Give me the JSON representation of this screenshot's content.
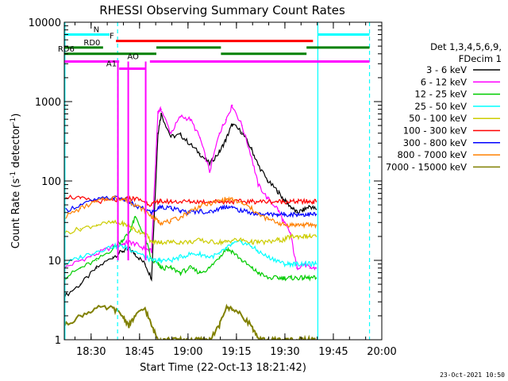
{
  "chart_data": {
    "type": "line",
    "title": "RHESSI Observing Summary Count Rates",
    "xlabel": "Start Time (22-Oct-13 18:21:42)",
    "ylabel_main": "Count Rate (s",
    "ylabel_sup1": "-1",
    "ylabel_mid": " detector",
    "ylabel_sup2": "-1",
    "ylabel_end": ")",
    "x_range_minutes": [
      0,
      98.3
    ],
    "y_range": [
      1,
      10000
    ],
    "y_scale": "log",
    "x_ticks": [
      {
        "label": "18:30",
        "minute": 8.3
      },
      {
        "label": "18:45",
        "minute": 23.3
      },
      {
        "label": "19:00",
        "minute": 38.3
      },
      {
        "label": "19:15",
        "minute": 53.3
      },
      {
        "label": "19:30",
        "minute": 68.3
      },
      {
        "label": "19:45",
        "minute": 83.3
      },
      {
        "label": "20:00",
        "minute": 98.3
      }
    ],
    "y_ticks": [
      {
        "label": "1",
        "value": 1
      },
      {
        "label": "10",
        "value": 10
      },
      {
        "label": "100",
        "value": 100
      },
      {
        "label": "1000",
        "value": 1000
      },
      {
        "label": "10000",
        "value": 10000
      }
    ],
    "legend_header": [
      "Det 1,3,4,5,6,9,",
      "FDecim 1"
    ],
    "legend_placement": "right",
    "series": [
      {
        "name": "3 - 6 keV",
        "color": "#000000",
        "x": [
          0,
          5,
          10,
          15,
          18,
          20,
          22,
          25,
          27,
          29,
          30,
          33,
          36,
          39,
          42,
          45,
          48,
          50,
          52,
          55,
          58,
          60,
          63,
          66,
          68,
          70,
          72,
          74,
          76,
          78
        ],
        "y": [
          3.5,
          5,
          8,
          11,
          13,
          14,
          12,
          9,
          6,
          400,
          700,
          360,
          380,
          290,
          220,
          165,
          230,
          330,
          520,
          410,
          250,
          160,
          100,
          75,
          58,
          48,
          40,
          43,
          48,
          44
        ]
      },
      {
        "name": "6 - 12 keV",
        "color": "#ff00ff",
        "x": [
          0,
          5,
          10,
          15,
          18,
          20,
          22,
          25,
          27,
          29,
          30,
          33,
          36,
          39,
          42,
          45,
          48,
          50,
          52,
          55,
          58,
          60,
          63,
          66,
          68,
          70,
          72,
          74,
          76,
          78
        ],
        "y": [
          8,
          10,
          12,
          15,
          16,
          17,
          16,
          14,
          13,
          750,
          800,
          400,
          650,
          600,
          350,
          130,
          400,
          590,
          900,
          500,
          200,
          90,
          60,
          45,
          30,
          22,
          8,
          9,
          8,
          8
        ]
      },
      {
        "name": "12 - 25 keV",
        "color": "#00cc00",
        "x": [
          0,
          5,
          10,
          15,
          18,
          20,
          22,
          25,
          27,
          29,
          30,
          33,
          36,
          39,
          42,
          45,
          48,
          50,
          52,
          55,
          58,
          60,
          63,
          66,
          68,
          70,
          72,
          74,
          76,
          78
        ],
        "y": [
          6,
          8,
          10,
          14,
          18,
          22,
          35,
          20,
          10,
          9,
          8,
          8,
          7,
          8,
          7,
          8,
          11,
          14,
          13,
          10,
          8,
          7,
          6,
          6,
          6,
          6,
          6,
          6,
          6,
          6
        ]
      },
      {
        "name": "25 - 50 keV",
        "color": "#00ffff",
        "x": [
          0,
          5,
          10,
          15,
          18,
          20,
          22,
          25,
          27,
          29,
          30,
          33,
          36,
          39,
          42,
          45,
          48,
          50,
          52,
          55,
          58,
          60,
          63,
          66,
          68,
          70,
          72,
          74,
          76,
          78
        ],
        "y": [
          9,
          11,
          13,
          15,
          15,
          14,
          13,
          11,
          10,
          10,
          10,
          10,
          11,
          12,
          12,
          11,
          12,
          14,
          16,
          17,
          15,
          13,
          11,
          10,
          9,
          9,
          9,
          9,
          9,
          9
        ]
      },
      {
        "name": "50 - 100 keV",
        "color": "#cccc00",
        "x": [
          0,
          5,
          10,
          15,
          18,
          20,
          22,
          25,
          27,
          29,
          30,
          33,
          36,
          39,
          42,
          45,
          48,
          50,
          52,
          55,
          58,
          60,
          63,
          66,
          68,
          70,
          72,
          74,
          76,
          78
        ],
        "y": [
          22,
          25,
          28,
          30,
          29,
          27,
          24,
          22,
          17,
          17,
          17,
          17,
          17,
          17,
          18,
          17,
          17,
          17,
          18,
          18,
          17,
          17,
          17,
          18,
          18,
          20,
          20,
          20,
          20,
          20
        ]
      },
      {
        "name": "100 - 300 keV",
        "color": "#ff0000",
        "x": [
          0,
          5,
          10,
          15,
          18,
          20,
          22,
          25,
          27,
          29,
          30,
          33,
          36,
          39,
          42,
          45,
          48,
          50,
          52,
          55,
          58,
          60,
          63,
          66,
          68,
          70,
          72,
          74,
          76,
          78
        ],
        "y": [
          65,
          60,
          55,
          57,
          58,
          60,
          60,
          55,
          50,
          55,
          55,
          55,
          55,
          55,
          55,
          55,
          55,
          55,
          55,
          55,
          55,
          55,
          55,
          55,
          55,
          55,
          55,
          55,
          55,
          55
        ]
      },
      {
        "name": "300 - 800 keV",
        "color": "#0000ff",
        "x": [
          0,
          5,
          10,
          15,
          18,
          20,
          22,
          25,
          27,
          29,
          30,
          33,
          36,
          39,
          42,
          45,
          48,
          50,
          52,
          55,
          58,
          60,
          63,
          66,
          68,
          70,
          72,
          74,
          76,
          78
        ],
        "y": [
          42,
          50,
          58,
          62,
          60,
          55,
          48,
          44,
          40,
          45,
          48,
          45,
          42,
          40,
          42,
          40,
          45,
          48,
          46,
          42,
          40,
          38,
          38,
          38,
          38,
          38,
          38,
          38,
          38,
          38
        ]
      },
      {
        "name": "800 - 7000 keV",
        "color": "#ff8000",
        "x": [
          0,
          5,
          10,
          15,
          18,
          20,
          22,
          25,
          27,
          29,
          30,
          33,
          36,
          39,
          42,
          45,
          48,
          50,
          52,
          55,
          58,
          60,
          63,
          66,
          68,
          70,
          72,
          74,
          76,
          78
        ],
        "y": [
          35,
          45,
          55,
          62,
          60,
          56,
          50,
          42,
          36,
          31,
          30,
          31,
          35,
          42,
          48,
          52,
          56,
          59,
          58,
          52,
          45,
          38,
          33,
          30,
          28,
          28,
          28,
          28,
          28,
          28
        ]
      },
      {
        "name": "7000 - 15000 keV",
        "color": "#808000",
        "x": [
          0,
          5,
          10,
          15,
          18,
          20,
          22,
          25,
          27,
          29,
          30,
          33,
          36,
          39,
          42,
          45,
          48,
          50,
          52,
          55,
          58,
          60,
          63,
          66,
          68,
          70,
          72,
          74,
          76,
          78
        ],
        "y": [
          1.5,
          2,
          2.5,
          2.5,
          2,
          1.5,
          2,
          2.5,
          1.5,
          1,
          1,
          1,
          1,
          1,
          1,
          1,
          1.5,
          2.5,
          2.5,
          2,
          1.5,
          1,
          1,
          1,
          1,
          1,
          1,
          1,
          1,
          1
        ]
      }
    ],
    "annotations": [
      {
        "text": "N",
        "color": "#00ffff",
        "y": 7000,
        "x_start": 0,
        "x_end": 14,
        "label_x": 9
      },
      {
        "text": "",
        "color": "#00ffff",
        "y": 7000,
        "x_start": 78.5,
        "x_end": 94.5,
        "label_x": 0
      },
      {
        "text": "F",
        "color": "#ff0000",
        "y": 5800,
        "x_start": 16,
        "x_end": 77,
        "label_x": 14
      },
      {
        "text": "RD0",
        "color": "#008000",
        "y": 4800,
        "x_start": 0,
        "x_end": 12,
        "label_x": 6
      },
      {
        "text": "",
        "color": "#008000",
        "y": 4800,
        "x_start": 28.5,
        "x_end": 48.5,
        "label_x": 0
      },
      {
        "text": "",
        "color": "#008000",
        "y": 4800,
        "x_start": 75,
        "x_end": 94.5,
        "label_x": 0
      },
      {
        "text": "RD6",
        "color": "#008000",
        "y": 4000,
        "x_start": 0,
        "x_end": 28.5,
        "label_x": -2
      },
      {
        "text": "",
        "color": "#008000",
        "y": 4000,
        "x_start": 48.5,
        "x_end": 75,
        "label_x": 0
      },
      {
        "text": "AO",
        "color": "#ff00ff",
        "y": 3200,
        "x_start": 26.5,
        "x_end": 94.5,
        "label_x": 19.5
      },
      {
        "text": "",
        "color": "#ff00ff",
        "y": 3200,
        "x_start": 0,
        "x_end": 17,
        "label_x": 0
      },
      {
        "text": "A1",
        "color": "#ff00ff",
        "y": 2600,
        "x_start": 17,
        "x_end": 25,
        "label_x": 13
      }
    ],
    "vlines": [
      {
        "color": "#00ffff",
        "minute": 0.2,
        "style": "solid"
      },
      {
        "color": "#00ffff",
        "minute": 16.5,
        "style": "dashed"
      },
      {
        "color": "#00ffff",
        "minute": 78.5,
        "style": "solid"
      },
      {
        "color": "#00ffff",
        "minute": 94.5,
        "style": "dashed"
      },
      {
        "color": "#ff00ff",
        "minute": 16.6,
        "style": "solid"
      },
      {
        "color": "#ff00ff",
        "minute": 19.8,
        "style": "solid"
      },
      {
        "color": "#ff00ff",
        "minute": 25.2,
        "style": "solid"
      }
    ],
    "footer_date": "23-Oct-2021 10:50"
  }
}
